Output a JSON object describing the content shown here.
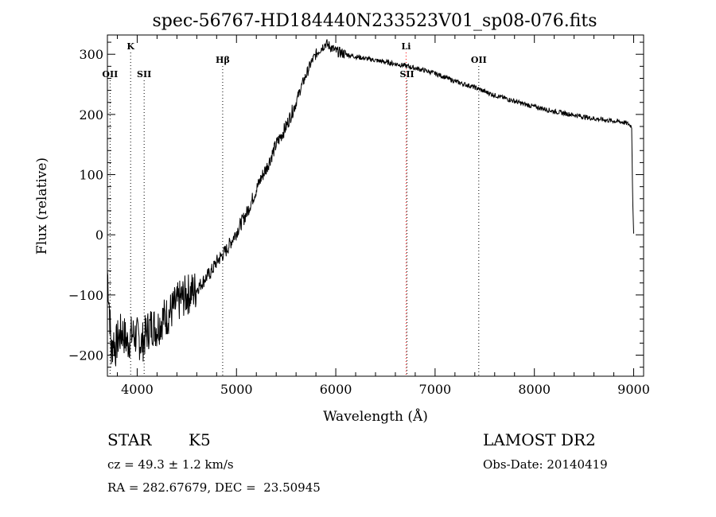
{
  "chart_data": {
    "type": "line",
    "title": "spec-56767-HD184440N233523V01_sp08-076.fits",
    "xlabel": "Wavelength (Å)",
    "ylabel": "Flux (relative)",
    "xlim": [
      3700,
      9100
    ],
    "ylim": [
      -235,
      332
    ],
    "x_ticks": [
      4000,
      5000,
      6000,
      7000,
      8000,
      9000
    ],
    "y_ticks": [
      -200,
      -100,
      0,
      100,
      200,
      300
    ],
    "grid": false,
    "line_color": "#000000",
    "spectral_lines": [
      {
        "label": "K",
        "wavelength": 3934,
        "row": "top",
        "color": "#000000"
      },
      {
        "label": "OII",
        "wavelength": 3727,
        "row": "middle",
        "color": "#000000"
      },
      {
        "label": "SII",
        "wavelength": 4070,
        "row": "middle",
        "color": "#000000"
      },
      {
        "label": "Hβ",
        "wavelength": 4861,
        "row": "upper",
        "color": "#000000"
      },
      {
        "label": "Li",
        "wavelength": 6708,
        "row": "top",
        "color": "#ff0000"
      },
      {
        "label": "SII",
        "wavelength": 6717,
        "row": "middle",
        "color": "#000000"
      },
      {
        "label": "OII",
        "wavelength": 7440,
        "row": "upper",
        "color": "#000000"
      }
    ],
    "series": [
      {
        "x": [
          3700,
          3720,
          3740,
          3760,
          3780,
          3800,
          3850,
          3900,
          3950,
          4000,
          4050,
          4100,
          4150,
          4200,
          4250,
          4300,
          4350,
          4400,
          4450,
          4500,
          4550,
          4600,
          4650,
          4700,
          4750,
          4800,
          4850,
          4900,
          4950,
          5000,
          5050,
          5100,
          5150,
          5200,
          5250,
          5300,
          5350,
          5400,
          5450,
          5500,
          5550,
          5600,
          5650,
          5700,
          5750,
          5800,
          5850,
          5900,
          5950,
          6000,
          6100,
          6200,
          6300,
          6400,
          6500,
          6600,
          6700,
          6800,
          6900,
          7000,
          7100,
          7200,
          7300,
          7400,
          7500,
          7600,
          7700,
          7800,
          7900,
          8000,
          8100,
          8200,
          8300,
          8400,
          8500,
          8600,
          8700,
          8800,
          8900,
          8950,
          8980,
          8990,
          9000
        ],
        "y": [
          -60,
          -120,
          -200,
          -170,
          -190,
          -175,
          -160,
          -180,
          -165,
          -170,
          -180,
          -160,
          -150,
          -155,
          -140,
          -135,
          -125,
          -115,
          -105,
          -100,
          -95,
          -90,
          -80,
          -70,
          -60,
          -45,
          -35,
          -25,
          -10,
          5,
          20,
          35,
          55,
          75,
          95,
          110,
          130,
          150,
          165,
          180,
          200,
          220,
          245,
          265,
          285,
          300,
          310,
          318,
          312,
          305,
          300,
          296,
          293,
          290,
          287,
          284,
          281,
          277,
          273,
          268,
          262,
          255,
          250,
          245,
          238,
          232,
          227,
          222,
          217,
          213,
          209,
          205,
          202,
          199,
          196,
          193,
          191,
          189,
          187,
          184,
          180,
          60,
          2
        ]
      }
    ]
  },
  "info": {
    "object_class": "STAR",
    "subclass": "K5",
    "survey": "LAMOST DR2",
    "redshift": "cz = 49.3 ± 1.2 km/s",
    "obs_date": "Obs-Date: 20140419",
    "coords": "RA = 282.67679, DEC =  23.50945"
  }
}
